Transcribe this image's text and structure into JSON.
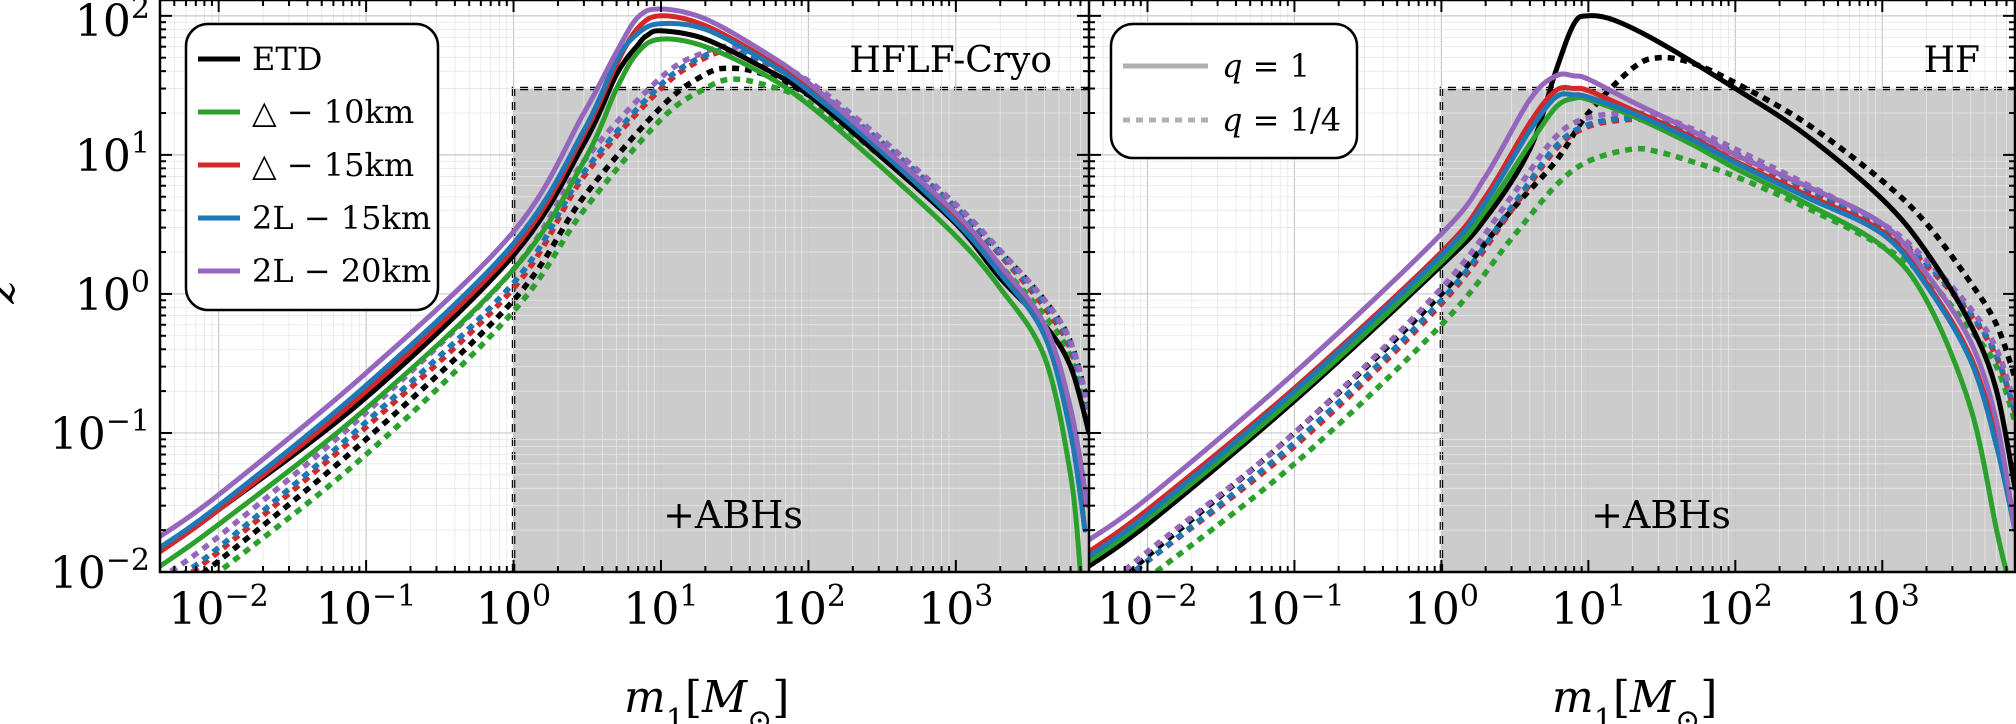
{
  "figure": {
    "ylabel": "z",
    "xlabel_base": "m",
    "xlabel_sub": "1",
    "xlabel_unit_open": "[",
    "xlabel_unit": "M",
    "xlabel_unit_sub": "⊙",
    "xlabel_unit_close": "]"
  },
  "chart_data": [
    {
      "type": "line",
      "title": "HFLF-Cryo",
      "xscale": "log",
      "yscale": "log",
      "xlim": [
        0.004,
        8000
      ],
      "ylim": [
        0.01,
        130
      ],
      "grid": true,
      "x_ticks": [
        {
          "value": 0.01,
          "base": "10",
          "exp": "−2"
        },
        {
          "value": 0.1,
          "base": "10",
          "exp": "−1"
        },
        {
          "value": 1,
          "base": "10",
          "exp": "0"
        },
        {
          "value": 10,
          "base": "10",
          "exp": "1"
        },
        {
          "value": 100,
          "base": "10",
          "exp": "2"
        },
        {
          "value": 1000,
          "base": "10",
          "exp": "3"
        }
      ],
      "y_ticks": [
        {
          "value": 0.01,
          "base": "10",
          "exp": "−2"
        },
        {
          "value": 0.1,
          "base": "10",
          "exp": "−1"
        },
        {
          "value": 1,
          "base": "10",
          "exp": "0"
        },
        {
          "value": 10,
          "base": "10",
          "exp": "1"
        },
        {
          "value": 100,
          "base": "10",
          "exp": "2"
        }
      ],
      "shaded_region": {
        "label": "+ABHs",
        "x_range": [
          1,
          8000
        ],
        "y_range": [
          0.01,
          30
        ],
        "color": "#cccccc"
      },
      "legend": {
        "placement": "top-left",
        "entries": [
          {
            "label": "ETD",
            "color": "#000000"
          },
          {
            "label": "△ − 10km",
            "color": "#2ca02c"
          },
          {
            "label": "△ − 15km",
            "color": "#d62728"
          },
          {
            "label": "2L − 15km",
            "color": "#1f77b4"
          },
          {
            "label": "2L − 20km",
            "color": "#9467bd"
          }
        ]
      },
      "series": [
        {
          "name": "ETD",
          "q": "1",
          "color": "#000000",
          "style": "solid",
          "x": [
            0.004,
            0.01,
            0.1,
            1,
            3,
            5,
            7,
            8,
            10,
            20,
            50,
            100,
            300,
            1000,
            2000,
            4000,
            6000,
            8000
          ],
          "y": [
            0.014,
            0.028,
            0.18,
            1.9,
            12,
            38,
            62,
            72,
            78,
            68,
            42,
            27,
            10,
            3.2,
            1.3,
            0.6,
            0.3,
            0.1
          ]
        },
        {
          "name": "△ − 10km",
          "q": "1",
          "color": "#2ca02c",
          "style": "solid",
          "x": [
            0.004,
            0.01,
            0.1,
            1,
            3,
            5,
            7,
            10,
            20,
            50,
            100,
            300,
            1000,
            2000,
            4000,
            6000,
            7000
          ],
          "y": [
            0.011,
            0.022,
            0.15,
            1.5,
            9,
            30,
            55,
            68,
            60,
            38,
            23,
            8.5,
            2.6,
            1.1,
            0.35,
            0.05,
            0.01
          ]
        },
        {
          "name": "△ − 15km",
          "q": "1",
          "color": "#d62728",
          "style": "solid",
          "x": [
            0.004,
            0.01,
            0.1,
            1,
            3,
            5,
            7,
            10,
            20,
            50,
            100,
            300,
            1000,
            2000,
            4000,
            6000,
            7500
          ],
          "y": [
            0.014,
            0.028,
            0.2,
            2.1,
            14,
            45,
            82,
            100,
            85,
            50,
            30,
            11,
            3.4,
            1.5,
            0.55,
            0.12,
            0.02
          ]
        },
        {
          "name": "2L − 15km",
          "q": "1",
          "color": "#1f77b4",
          "style": "solid",
          "x": [
            0.004,
            0.01,
            0.1,
            1,
            3,
            5,
            7,
            10,
            20,
            50,
            100,
            300,
            1000,
            2000,
            4000,
            6000,
            7500
          ],
          "y": [
            0.015,
            0.03,
            0.22,
            2.3,
            15,
            48,
            75,
            88,
            80,
            48,
            29,
            11,
            3.3,
            1.4,
            0.5,
            0.1,
            0.02
          ]
        },
        {
          "name": "2L − 20km",
          "q": "1",
          "color": "#9467bd",
          "style": "solid",
          "x": [
            0.004,
            0.01,
            0.1,
            1,
            3,
            5,
            7,
            10,
            20,
            50,
            100,
            300,
            1000,
            2000,
            4000,
            6000,
            7800
          ],
          "y": [
            0.018,
            0.036,
            0.27,
            2.8,
            20,
            55,
            98,
            112,
            95,
            55,
            33,
            12,
            3.8,
            1.6,
            0.6,
            0.15,
            0.03
          ]
        },
        {
          "name": "ETD",
          "q": "1/4",
          "color": "#000000",
          "style": "dotted",
          "x": [
            0.004,
            0.01,
            0.1,
            1,
            3,
            10,
            20,
            30,
            50,
            100,
            300,
            1000,
            2000,
            4000,
            6000,
            8000
          ],
          "y": [
            0.006,
            0.012,
            0.09,
            0.9,
            5,
            22,
            38,
            42,
            38,
            27,
            12,
            4,
            2,
            0.9,
            0.45,
            0.15
          ]
        },
        {
          "name": "△ − 10km",
          "q": "1/4",
          "color": "#2ca02c",
          "style": "dotted",
          "x": [
            0.004,
            0.01,
            0.1,
            1,
            3,
            10,
            20,
            30,
            50,
            100,
            300,
            1000,
            2000,
            4000,
            6000,
            8000
          ],
          "y": [
            0.005,
            0.01,
            0.07,
            0.75,
            4,
            18,
            30,
            35,
            32,
            24,
            10,
            3.4,
            1.6,
            0.7,
            0.35,
            0.1
          ]
        },
        {
          "name": "△ − 15km",
          "q": "1/4",
          "color": "#d62728",
          "style": "dotted",
          "x": [
            0.004,
            0.01,
            0.1,
            1,
            3,
            10,
            20,
            30,
            50,
            100,
            300,
            1000,
            2000,
            4000,
            6000,
            8000
          ],
          "y": [
            0.007,
            0.014,
            0.11,
            1.1,
            7,
            30,
            50,
            55,
            46,
            31,
            12.5,
            4.1,
            1.9,
            0.8,
            0.4,
            0.13
          ]
        },
        {
          "name": "2L − 15km",
          "q": "1/4",
          "color": "#1f77b4",
          "style": "dotted",
          "x": [
            0.004,
            0.01,
            0.1,
            1,
            3,
            10,
            20,
            30,
            50,
            100,
            300,
            1000,
            2000,
            4000,
            6000,
            8000
          ],
          "y": [
            0.0075,
            0.015,
            0.12,
            1.2,
            7.5,
            32,
            52,
            56,
            47,
            32,
            12.8,
            4.2,
            1.95,
            0.85,
            0.42,
            0.13
          ]
        },
        {
          "name": "2L − 20km",
          "q": "1/4",
          "color": "#9467bd",
          "style": "dotted",
          "x": [
            0.004,
            0.01,
            0.1,
            1,
            3,
            10,
            20,
            30,
            50,
            100,
            300,
            1000,
            2000,
            4000,
            6000,
            8000
          ],
          "y": [
            0.009,
            0.018,
            0.14,
            1.5,
            9,
            36,
            55,
            60,
            50,
            34,
            13.5,
            4.4,
            2.05,
            0.9,
            0.45,
            0.15
          ]
        }
      ]
    },
    {
      "type": "line",
      "title": "HF",
      "xscale": "log",
      "yscale": "log",
      "xlim": [
        0.004,
        8000
      ],
      "ylim": [
        0.01,
        130
      ],
      "grid": true,
      "x_ticks": [
        {
          "value": 0.01,
          "base": "10",
          "exp": "−2"
        },
        {
          "value": 0.1,
          "base": "10",
          "exp": "−1"
        },
        {
          "value": 1,
          "base": "10",
          "exp": "0"
        },
        {
          "value": 10,
          "base": "10",
          "exp": "1"
        },
        {
          "value": 100,
          "base": "10",
          "exp": "2"
        },
        {
          "value": 1000,
          "base": "10",
          "exp": "3"
        }
      ],
      "shaded_region": {
        "label": "+ABHs",
        "x_range": [
          1,
          8000
        ],
        "y_range": [
          0.01,
          30
        ],
        "color": "#cccccc"
      },
      "legend": {
        "placement": "top-left",
        "entries": [
          {
            "label_prefix": "q",
            "label_value": " = 1",
            "style": "solid",
            "color": "#b0b0b0"
          },
          {
            "label_prefix": "q",
            "label_value": " = 1/4",
            "style": "dotted",
            "color": "#b0b0b0"
          }
        ]
      },
      "series": [
        {
          "name": "ETD",
          "q": "1",
          "color": "#000000",
          "style": "solid",
          "x": [
            0.004,
            0.01,
            0.1,
            1,
            2,
            4,
            6,
            8,
            10,
            15,
            30,
            100,
            300,
            1000,
            2000,
            4000,
            6000,
            8000
          ],
          "y": [
            0.011,
            0.022,
            0.17,
            1.6,
            3.5,
            11,
            40,
            88,
            100,
            93,
            65,
            30,
            14,
            4.8,
            2,
            0.6,
            0.2,
            0.04
          ]
        },
        {
          "name": "△ − 10km",
          "q": "1",
          "color": "#2ca02c",
          "style": "solid",
          "x": [
            0.004,
            0.01,
            0.1,
            1,
            2,
            4,
            6,
            8,
            10,
            20,
            50,
            100,
            300,
            1000,
            2000,
            4000,
            6000,
            7000
          ],
          "y": [
            0.012,
            0.024,
            0.18,
            1.7,
            4,
            12,
            22,
            25.5,
            25,
            19,
            12,
            8,
            4.5,
            2.2,
            0.9,
            0.15,
            0.02,
            0.01
          ]
        },
        {
          "name": "△ − 15km",
          "q": "1",
          "color": "#d62728",
          "style": "solid",
          "x": [
            0.004,
            0.01,
            0.1,
            1,
            2,
            4,
            6,
            8,
            10,
            20,
            50,
            100,
            300,
            1000,
            2000,
            4000,
            6000,
            8000
          ],
          "y": [
            0.014,
            0.028,
            0.21,
            2,
            5,
            17,
            29,
            30,
            29,
            21,
            13.5,
            9,
            5.2,
            2.8,
            1.2,
            0.35,
            0.09,
            0.02
          ]
        },
        {
          "name": "2L − 15km",
          "q": "1",
          "color": "#1f77b4",
          "style": "solid",
          "x": [
            0.004,
            0.01,
            0.1,
            1,
            2,
            4,
            6,
            8,
            10,
            20,
            50,
            100,
            300,
            1000,
            2000,
            4000,
            6000,
            8000
          ],
          "y": [
            0.013,
            0.026,
            0.2,
            1.9,
            4.6,
            15,
            26,
            27,
            26,
            20,
            13,
            8.8,
            5,
            2.7,
            1.15,
            0.33,
            0.08,
            0.02
          ]
        },
        {
          "name": "2L − 20km",
          "q": "1",
          "color": "#9467bd",
          "style": "solid",
          "x": [
            0.004,
            0.01,
            0.1,
            1,
            2,
            4,
            6,
            8,
            10,
            20,
            50,
            100,
            300,
            1000,
            2000,
            4000,
            6000,
            8000
          ],
          "y": [
            0.017,
            0.034,
            0.27,
            2.7,
            7,
            25,
            37,
            37,
            35,
            24,
            15,
            10,
            6,
            3.2,
            1.4,
            0.45,
            0.12,
            0.02
          ]
        },
        {
          "name": "ETD",
          "q": "1/4",
          "color": "#000000",
          "style": "dotted",
          "x": [
            0.008,
            0.01,
            0.1,
            1,
            3,
            6,
            10,
            20,
            30,
            50,
            100,
            300,
            1000,
            2000,
            4000,
            6000,
            8000
          ],
          "y": [
            0.01,
            0.013,
            0.1,
            1,
            4,
            9,
            20,
            42,
            50,
            46,
            33,
            17,
            6.5,
            3.2,
            1.2,
            0.6,
            0.25
          ]
        },
        {
          "name": "△ − 10km",
          "q": "1/4",
          "color": "#2ca02c",
          "style": "dotted",
          "x": [
            0.006,
            0.01,
            0.1,
            1,
            3,
            6,
            10,
            20,
            30,
            50,
            100,
            300,
            1000,
            2000,
            4000,
            6000,
            8000
          ],
          "y": [
            0.006,
            0.009,
            0.06,
            0.6,
            2.5,
            6,
            9,
            11,
            10.5,
            9,
            7,
            4.2,
            2.2,
            1.3,
            0.55,
            0.3,
            0.12
          ]
        },
        {
          "name": "△ − 15km",
          "q": "1/4",
          "color": "#d62728",
          "style": "dotted",
          "x": [
            0.006,
            0.01,
            0.1,
            1,
            3,
            6,
            10,
            20,
            30,
            50,
            100,
            300,
            1000,
            2000,
            4000,
            6000,
            8000
          ],
          "y": [
            0.008,
            0.012,
            0.08,
            0.85,
            4,
            11,
            16,
            18,
            17,
            14,
            10,
            5.6,
            2.9,
            1.6,
            0.7,
            0.35,
            0.14
          ]
        },
        {
          "name": "2L − 15km",
          "q": "1/4",
          "color": "#1f77b4",
          "style": "dotted",
          "x": [
            0.006,
            0.01,
            0.1,
            1,
            3,
            6,
            10,
            20,
            30,
            50,
            100,
            300,
            1000,
            2000,
            4000,
            6000,
            8000
          ],
          "y": [
            0.008,
            0.012,
            0.085,
            0.9,
            4.2,
            11.5,
            16.5,
            18.5,
            17.5,
            14.5,
            10.3,
            5.8,
            3,
            1.65,
            0.72,
            0.36,
            0.14
          ]
        },
        {
          "name": "2L − 20km",
          "q": "1/4",
          "color": "#9467bd",
          "style": "dotted",
          "x": [
            0.006,
            0.01,
            0.1,
            1,
            3,
            6,
            10,
            20,
            30,
            50,
            100,
            300,
            1000,
            2000,
            4000,
            6000,
            8000
          ],
          "y": [
            0.009,
            0.014,
            0.1,
            1.1,
            5,
            13.5,
            18.5,
            20,
            19,
            15.5,
            11,
            6.2,
            3.2,
            1.75,
            0.78,
            0.4,
            0.16
          ]
        }
      ]
    }
  ]
}
